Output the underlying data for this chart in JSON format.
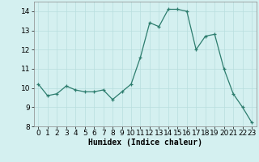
{
  "x": [
    0,
    1,
    2,
    3,
    4,
    5,
    6,
    7,
    8,
    9,
    10,
    11,
    12,
    13,
    14,
    15,
    16,
    17,
    18,
    19,
    20,
    21,
    22,
    23
  ],
  "y": [
    10.2,
    9.6,
    9.7,
    10.1,
    9.9,
    9.8,
    9.8,
    9.9,
    9.4,
    9.8,
    10.2,
    11.6,
    13.4,
    13.2,
    14.1,
    14.1,
    14.0,
    12.0,
    12.7,
    12.8,
    11.0,
    9.7,
    9.0,
    8.2
  ],
  "xlabel": "Humidex (Indice chaleur)",
  "ylim": [
    8,
    14.5
  ],
  "yticks": [
    8,
    9,
    10,
    11,
    12,
    13,
    14
  ],
  "xticks": [
    0,
    1,
    2,
    3,
    4,
    5,
    6,
    7,
    8,
    9,
    10,
    11,
    12,
    13,
    14,
    15,
    16,
    17,
    18,
    19,
    20,
    21,
    22,
    23
  ],
  "line_color": "#2d7d6e",
  "marker_color": "#2d7d6e",
  "bg_color": "#d4f0f0",
  "grid_color": "#b8dede",
  "fig_bg": "#d4f0f0",
  "xlabel_fontsize": 7,
  "tick_fontsize": 6.5
}
